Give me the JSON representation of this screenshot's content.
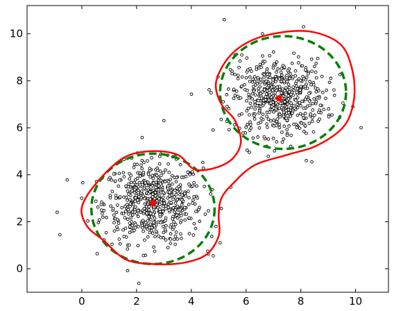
{
  "chart_data": {
    "type": "scatter",
    "title": "",
    "xlabel": "",
    "ylabel": "",
    "xlim": [
      -2,
      11.2
    ],
    "ylim": [
      -1,
      11.2
    ],
    "xticks": [
      0,
      2,
      4,
      6,
      8,
      10
    ],
    "xtick_labels": [
      "0",
      "2",
      "4",
      "6",
      "8",
      "10"
    ],
    "yticks": [
      0,
      2,
      4,
      6,
      8,
      10
    ],
    "ytick_labels": [
      "0",
      "2",
      "4",
      "6",
      "8",
      "10"
    ],
    "grid": false,
    "legend": "none",
    "clusters": [
      {
        "center": [
          2.6,
          2.8
        ],
        "spread": [
          0.9,
          0.85
        ],
        "count": 620
      },
      {
        "center": [
          7.2,
          7.3
        ],
        "spread": [
          0.85,
          0.8
        ],
        "count": 560
      }
    ],
    "extra_points": [
      [
        -0.8,
        1.45
      ],
      [
        -0.9,
        2.4
      ],
      [
        5.2,
        10.6
      ],
      [
        10.2,
        6.0
      ],
      [
        3.0,
        6.3
      ],
      [
        4.8,
        0.55
      ],
      [
        4.6,
        0.75
      ],
      [
        8.2,
        4.6
      ],
      [
        8.4,
        4.55
      ],
      [
        8.1,
        10.3
      ],
      [
        6.6,
        10.0
      ],
      [
        4.9,
        1.8
      ],
      [
        5.6,
        9.1
      ],
      [
        9.9,
        6.9
      ]
    ],
    "centers": [
      [
        2.6,
        2.8
      ],
      [
        7.2,
        7.25
      ]
    ],
    "gaussian_contours": [
      {
        "center": [
          2.6,
          2.55
        ],
        "rx": 2.25,
        "ry": 2.35
      },
      {
        "center": [
          7.35,
          7.5
        ],
        "rx": 2.3,
        "ry": 2.4
      }
    ],
    "decision_boundary": [
      [
        0.8,
        1.2
      ],
      [
        1.6,
        0.4
      ],
      [
        2.6,
        0.2
      ],
      [
        3.7,
        0.25
      ],
      [
        4.55,
        0.6
      ],
      [
        5.0,
        1.4
      ],
      [
        5.0,
        2.3
      ],
      [
        5.1,
        3.0
      ],
      [
        5.5,
        3.6
      ],
      [
        6.3,
        4.4
      ],
      [
        7.5,
        4.85
      ],
      [
        8.6,
        5.25
      ],
      [
        9.6,
        6.1
      ],
      [
        9.95,
        7.3
      ],
      [
        9.85,
        8.6
      ],
      [
        9.4,
        9.6
      ],
      [
        8.3,
        10.1
      ],
      [
        7.0,
        10.0
      ],
      [
        6.0,
        9.6
      ],
      [
        5.3,
        8.9
      ],
      [
        4.9,
        7.9
      ],
      [
        5.1,
        7.0
      ],
      [
        5.6,
        6.3
      ],
      [
        5.8,
        5.3
      ],
      [
        5.3,
        4.5
      ],
      [
        4.2,
        4.2
      ],
      [
        3.5,
        4.85
      ],
      [
        2.5,
        5.0
      ],
      [
        1.5,
        4.7
      ],
      [
        0.5,
        3.6
      ],
      [
        0.0,
        2.6
      ],
      [
        0.2,
        1.8
      ],
      [
        0.8,
        1.2
      ]
    ],
    "colors": {
      "points": "#000000",
      "point_fill": "#ffffff",
      "centers": "#ff0000",
      "gaussian_contour": "#008000",
      "decision_boundary": "#ff0000"
    }
  }
}
